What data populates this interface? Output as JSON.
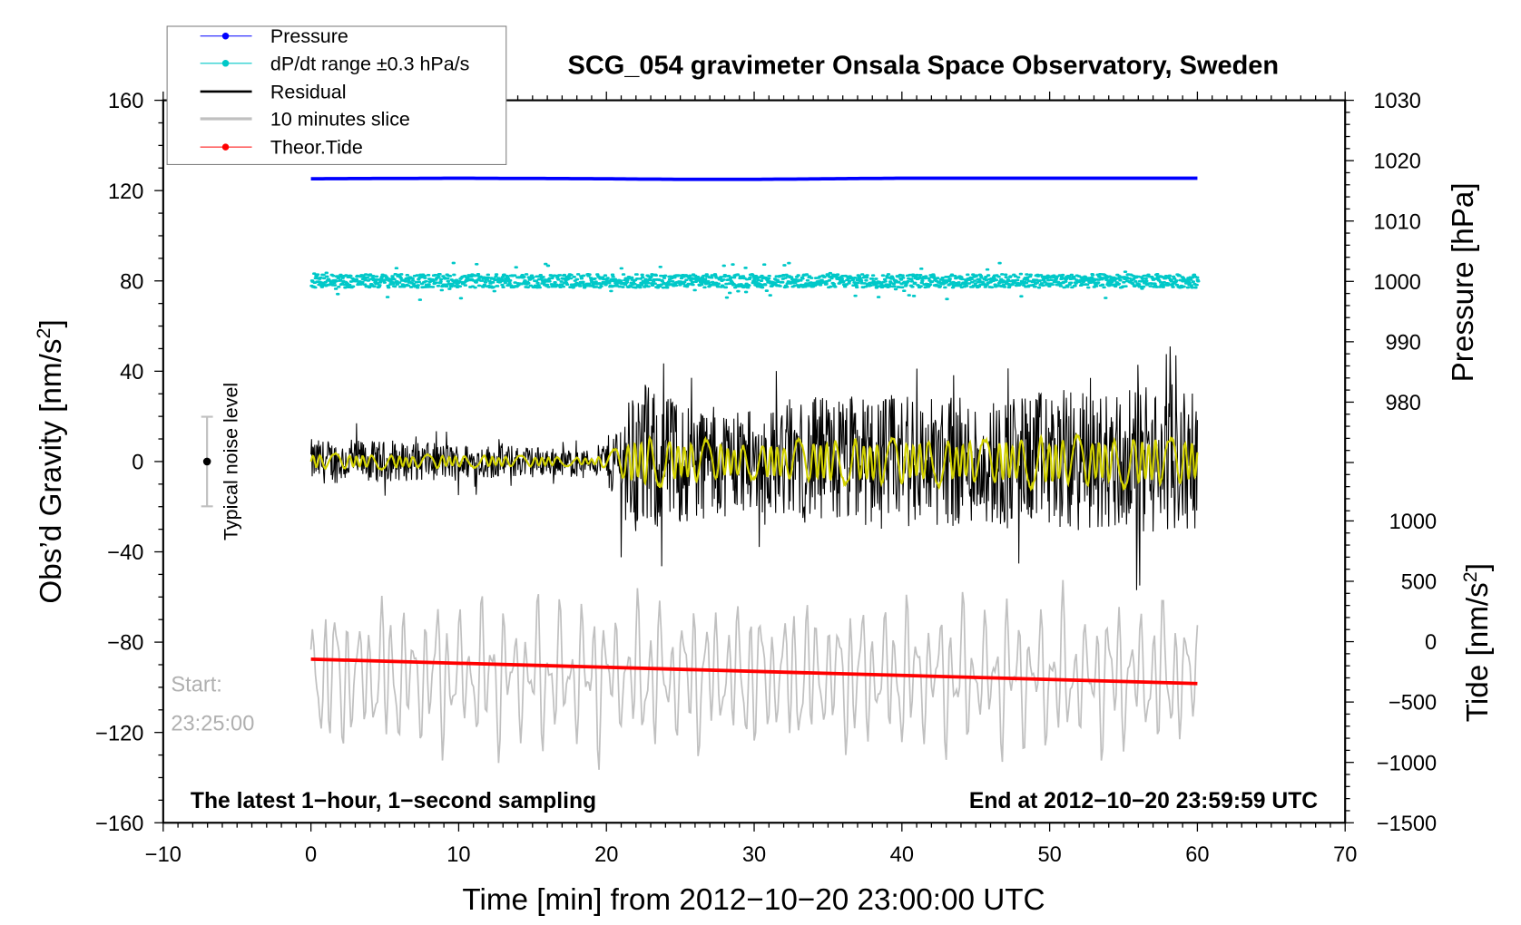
{
  "chart_data": {
    "type": "line",
    "title": "SCG_054 gravimeter Onsala Space Observatory, Sweden",
    "xlabel": "Time [min] from 2012−10−20 23:00:00 UTC",
    "ylabel": "Obs’d Gravity [nm/s",
    "ylabel_sup": "2",
    "ylabel_end": "]",
    "y2label": "Pressure [hPa]",
    "y3label": "Tide [nm/s",
    "y3label_sup": "2",
    "y3label_end": "]",
    "xlim": [
      -10,
      70
    ],
    "ylim": [
      -160,
      160
    ],
    "y2lim_pressure": [
      980,
      1030
    ],
    "y3lim_tide": [
      -1500,
      1000
    ],
    "xticks": [
      "−10",
      "0",
      "10",
      "20",
      "30",
      "40",
      "50",
      "60",
      "70"
    ],
    "yticks": [
      "160",
      "120",
      "80",
      "40",
      "0",
      "−40",
      "−80",
      "−120",
      "−160"
    ],
    "pressure_ticks": [
      "1030",
      "1020",
      "1010",
      "1000",
      "990",
      "980"
    ],
    "tide_ticks": [
      "1000",
      "500",
      "0",
      "−500",
      "−1000",
      "−1500"
    ],
    "legend": {
      "placement": "top-left",
      "entries": [
        {
          "label": "Pressure",
          "color": "#0000ff",
          "marker": true
        },
        {
          "label": "dP/dt range ±0.3 hPa/s",
          "color": "#00c8c8",
          "marker": true
        },
        {
          "label": "Residual",
          "color": "#000000",
          "marker": false
        },
        {
          "label": "10 minutes slice",
          "color": "#c0c0c0",
          "marker": false
        },
        {
          "label": "Theor.Tide",
          "color": "#ff0000",
          "marker": true
        }
      ]
    },
    "series": [
      {
        "name": "Pressure",
        "axis": "pressure",
        "x": [
          0,
          10,
          20,
          25,
          30,
          35,
          40,
          50,
          60
        ],
        "values": [
          1017.0,
          1017.1,
          1017.0,
          1016.9,
          1016.9,
          1017.0,
          1017.1,
          1017.1,
          1017.1
        ]
      },
      {
        "name": "dP/dt range",
        "axis": "gravity-offset",
        "center": 80,
        "spread": 3,
        "outlier_max": 14
      },
      {
        "name": "Residual",
        "axis": "gravity",
        "envelope_x": [
          0,
          5,
          10,
          15,
          19,
          20,
          22,
          25,
          30,
          35,
          40,
          45,
          50,
          55,
          60
        ],
        "envelope_amp": [
          10,
          9,
          8,
          7,
          5,
          10,
          35,
          28,
          22,
          30,
          30,
          28,
          32,
          32,
          30
        ]
      },
      {
        "name": "Residual smoothed",
        "color": "#d2d200",
        "axis": "gravity",
        "envelope_amp_fraction": 0.4
      },
      {
        "name": "10 minutes slice",
        "axis": "gravity",
        "center": -95,
        "amplitude": 28
      },
      {
        "name": "Theor.Tide",
        "axis": "tide",
        "x": [
          0,
          60
        ],
        "values": [
          -145,
          -347
        ]
      }
    ],
    "annotations": {
      "noise_label": "Typical noise level",
      "noise_range": [
        -20,
        20
      ],
      "start_label": "Start:",
      "start_time": "23:25:00",
      "bottom_left": "The latest 1−hour, 1−second sampling",
      "bottom_right": "End at 2012−10−20 23:59:59 UTC"
    }
  }
}
